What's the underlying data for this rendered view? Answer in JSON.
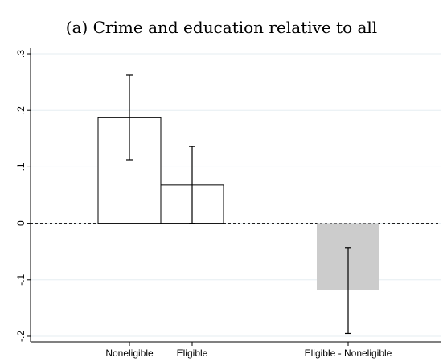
{
  "chart_data": {
    "type": "bar",
    "title": "(a) Crime and education relative to all",
    "xlabel": "",
    "ylabel": "",
    "ylim": [
      -0.21,
      0.31
    ],
    "yticks": [
      {
        "value": 0.3,
        "label": ".3"
      },
      {
        "value": 0.2,
        "label": ".2"
      },
      {
        "value": 0.1,
        "label": ".1"
      },
      {
        "value": 0,
        "label": "0"
      },
      {
        "value": -0.1,
        "label": "-.1"
      },
      {
        "value": -0.2,
        "label": "-.2"
      }
    ],
    "grid": true,
    "bars": [
      {
        "label": "Noneligible",
        "value": 0.187,
        "ci": [
          0.112,
          0.263
        ],
        "color": "#ffffff"
      },
      {
        "label": "Eligible",
        "value": 0.068,
        "ci": [
          0.0,
          0.136
        ],
        "color": "#ffffff"
      },
      {
        "label": "Eligible - Noneligible",
        "value": -0.118,
        "ci": [
          -0.195,
          -0.043
        ],
        "color": "#cccccc"
      }
    ],
    "reference_line": 0
  }
}
